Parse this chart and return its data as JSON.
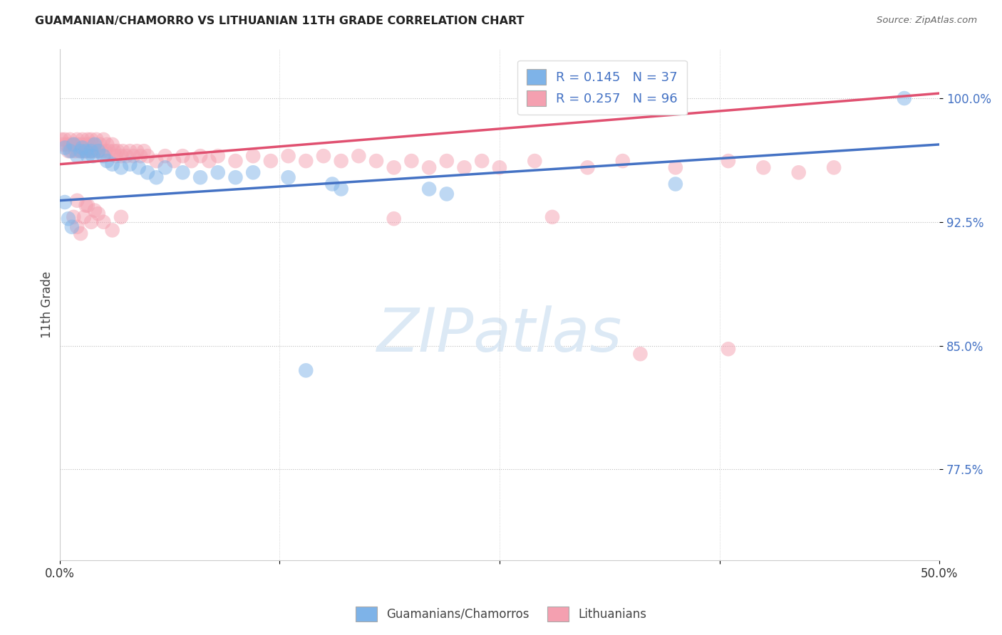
{
  "title": "GUAMANIAN/CHAMORRO VS LITHUANIAN 11TH GRADE CORRELATION CHART",
  "source": "Source: ZipAtlas.com",
  "ylabel": "11th Grade",
  "xlim": [
    0.0,
    0.5
  ],
  "ylim": [
    0.72,
    1.03
  ],
  "yticks": [
    0.775,
    0.85,
    0.925,
    1.0
  ],
  "ytick_labels": [
    "77.5%",
    "85.0%",
    "92.5%",
    "100.0%"
  ],
  "xticks": [
    0.0,
    0.125,
    0.25,
    0.375,
    0.5
  ],
  "xtick_labels": [
    "0.0%",
    "",
    "",
    "",
    "50.0%"
  ],
  "color_blue": "#7EB3E8",
  "color_pink": "#F4A0B0",
  "line_blue": "#4472C4",
  "line_pink": "#E05070",
  "watermark_color": "#DCE9F5",
  "background": "#ffffff",
  "blue_x": [
    0.003,
    0.006,
    0.008,
    0.01,
    0.012,
    0.013,
    0.015,
    0.016,
    0.018,
    0.019,
    0.02,
    0.022,
    0.025,
    0.027,
    0.03,
    0.035,
    0.04,
    0.045,
    0.05,
    0.055,
    0.06,
    0.07,
    0.08,
    0.09,
    0.1,
    0.11,
    0.13,
    0.155,
    0.16,
    0.21,
    0.22,
    0.35,
    0.48,
    0.003,
    0.005,
    0.007,
    0.14
  ],
  "blue_y": [
    0.97,
    0.968,
    0.972,
    0.965,
    0.968,
    0.97,
    0.968,
    0.965,
    0.968,
    0.965,
    0.972,
    0.968,
    0.965,
    0.962,
    0.96,
    0.958,
    0.96,
    0.958,
    0.955,
    0.952,
    0.958,
    0.955,
    0.952,
    0.955,
    0.952,
    0.955,
    0.952,
    0.948,
    0.945,
    0.945,
    0.942,
    0.948,
    1.0,
    0.937,
    0.927,
    0.922,
    0.835
  ],
  "pink_x": [
    0.001,
    0.002,
    0.003,
    0.004,
    0.005,
    0.006,
    0.006,
    0.007,
    0.008,
    0.009,
    0.01,
    0.01,
    0.011,
    0.012,
    0.013,
    0.013,
    0.014,
    0.015,
    0.015,
    0.016,
    0.017,
    0.017,
    0.018,
    0.018,
    0.019,
    0.02,
    0.021,
    0.022,
    0.023,
    0.024,
    0.025,
    0.026,
    0.027,
    0.028,
    0.03,
    0.031,
    0.032,
    0.033,
    0.035,
    0.036,
    0.038,
    0.04,
    0.042,
    0.044,
    0.046,
    0.048,
    0.05,
    0.055,
    0.06,
    0.065,
    0.07,
    0.075,
    0.08,
    0.085,
    0.09,
    0.1,
    0.11,
    0.12,
    0.13,
    0.14,
    0.15,
    0.16,
    0.17,
    0.18,
    0.19,
    0.2,
    0.21,
    0.22,
    0.23,
    0.24,
    0.25,
    0.27,
    0.3,
    0.32,
    0.35,
    0.38,
    0.4,
    0.42,
    0.44,
    0.01,
    0.015,
    0.02,
    0.008,
    0.01,
    0.012,
    0.014,
    0.016,
    0.018,
    0.022,
    0.025,
    0.03,
    0.035,
    0.19,
    0.28,
    0.33,
    0.38
  ],
  "pink_y": [
    0.975,
    0.972,
    0.975,
    0.972,
    0.968,
    0.972,
    0.975,
    0.968,
    0.972,
    0.968,
    0.975,
    0.972,
    0.968,
    0.972,
    0.968,
    0.975,
    0.968,
    0.972,
    0.968,
    0.975,
    0.968,
    0.972,
    0.975,
    0.968,
    0.972,
    0.968,
    0.975,
    0.968,
    0.972,
    0.968,
    0.975,
    0.968,
    0.972,
    0.968,
    0.972,
    0.968,
    0.965,
    0.968,
    0.965,
    0.968,
    0.965,
    0.968,
    0.965,
    0.968,
    0.965,
    0.968,
    0.965,
    0.962,
    0.965,
    0.962,
    0.965,
    0.962,
    0.965,
    0.962,
    0.965,
    0.962,
    0.965,
    0.962,
    0.965,
    0.962,
    0.965,
    0.962,
    0.965,
    0.962,
    0.958,
    0.962,
    0.958,
    0.962,
    0.958,
    0.962,
    0.958,
    0.962,
    0.958,
    0.962,
    0.958,
    0.962,
    0.958,
    0.955,
    0.958,
    0.938,
    0.935,
    0.932,
    0.928,
    0.922,
    0.918,
    0.928,
    0.935,
    0.925,
    0.93,
    0.925,
    0.92,
    0.928,
    0.927,
    0.928,
    0.845,
    0.848
  ],
  "blue_line_x0": 0.0,
  "blue_line_x1": 0.5,
  "blue_line_y0": 0.938,
  "blue_line_y1": 0.972,
  "pink_line_x0": 0.0,
  "pink_line_x1": 0.5,
  "pink_line_y0": 0.96,
  "pink_line_y1": 1.003
}
